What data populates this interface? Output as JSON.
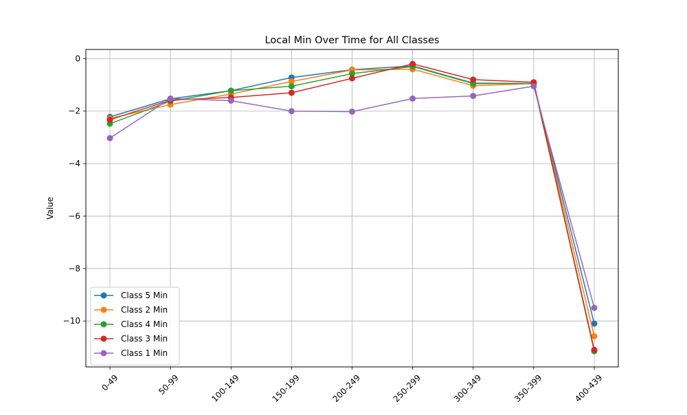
{
  "chart_data": {
    "type": "line",
    "title": "Local Min Over Time for All Classes",
    "xlabel": "",
    "ylabel": "Value",
    "categories": [
      "0-49",
      "50-99",
      "100-149",
      "150-199",
      "200-249",
      "250-299",
      "300-349",
      "350-399",
      "400-439"
    ],
    "ylim": [
      -11.75,
      0.35
    ],
    "yticks": [
      0,
      -2,
      -4,
      -6,
      -8,
      -10
    ],
    "ytick_labels": [
      "0",
      "−2",
      "−4",
      "−6",
      "−8",
      "−10"
    ],
    "grid": true,
    "legend_position": "lower-left",
    "series": [
      {
        "name": "Class 5 Min",
        "color": "#1f77b4",
        "values": [
          -2.22,
          -1.53,
          -1.22,
          -0.72,
          -0.42,
          -0.28,
          -0.93,
          -0.95,
          -10.1
        ]
      },
      {
        "name": "Class 2 Min",
        "color": "#ff7f0e",
        "values": [
          -2.28,
          -1.75,
          -1.35,
          -0.87,
          -0.43,
          -0.4,
          -1.03,
          -0.95,
          -10.58
        ]
      },
      {
        "name": "Class 4 Min",
        "color": "#2ca02c",
        "values": [
          -2.48,
          -1.62,
          -1.22,
          -1.05,
          -0.57,
          -0.3,
          -0.95,
          -0.95,
          -11.15
        ]
      },
      {
        "name": "Class 3 Min",
        "color": "#d62728",
        "values": [
          -2.33,
          -1.58,
          -1.48,
          -1.3,
          -0.75,
          -0.2,
          -0.8,
          -0.9,
          -11.1
        ]
      },
      {
        "name": "Class 1 Min",
        "color": "#9467bd",
        "values": [
          -3.03,
          -1.52,
          -1.6,
          -2.0,
          -2.02,
          -1.52,
          -1.42,
          -1.05,
          -9.5
        ]
      }
    ]
  }
}
